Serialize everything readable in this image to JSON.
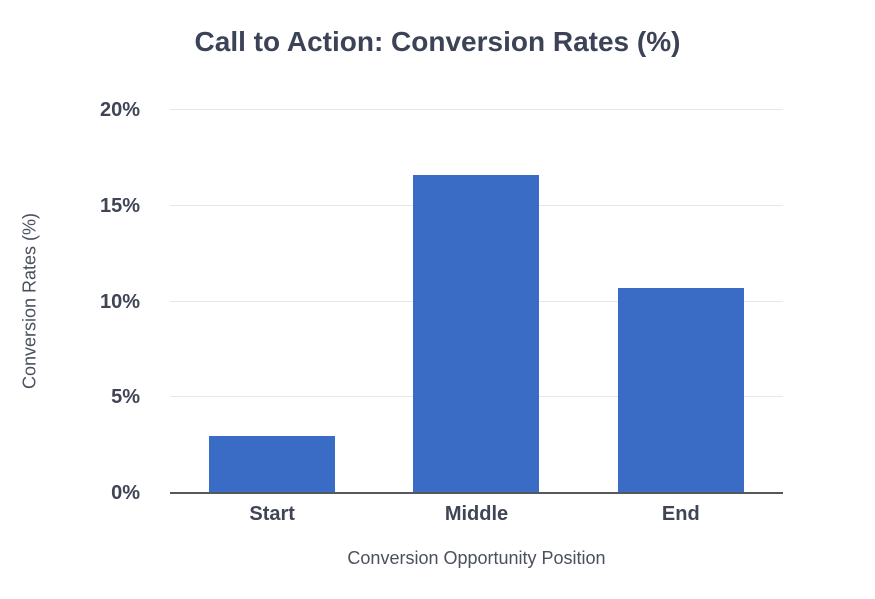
{
  "chart_data": {
    "type": "bar",
    "title": "Call to Action: Conversion Rates (%)",
    "xlabel": "Conversion Opportunity Position",
    "ylabel": "Conversion Rates (%)",
    "categories": [
      "Start",
      "Middle",
      "End"
    ],
    "values": [
      3.0,
      16.6,
      10.7
    ],
    "ylim": [
      0,
      20
    ],
    "yticks": [
      0,
      5,
      10,
      15,
      20
    ],
    "ytick_labels": [
      "0%",
      "5%",
      "10%",
      "15%",
      "20%"
    ],
    "grid": true,
    "legend": false,
    "layout": {
      "legend_position": "none",
      "bar_color_applies_to_all_series": true
    },
    "colors": {
      "bar": "#3a6cc6",
      "title_text": "#3d4357",
      "tick_text": "#3f4554",
      "axis_title_text": "#4a505c",
      "gridline": "#e7e7e7",
      "axis_line": "#55575c",
      "background": "#ffffff"
    }
  }
}
